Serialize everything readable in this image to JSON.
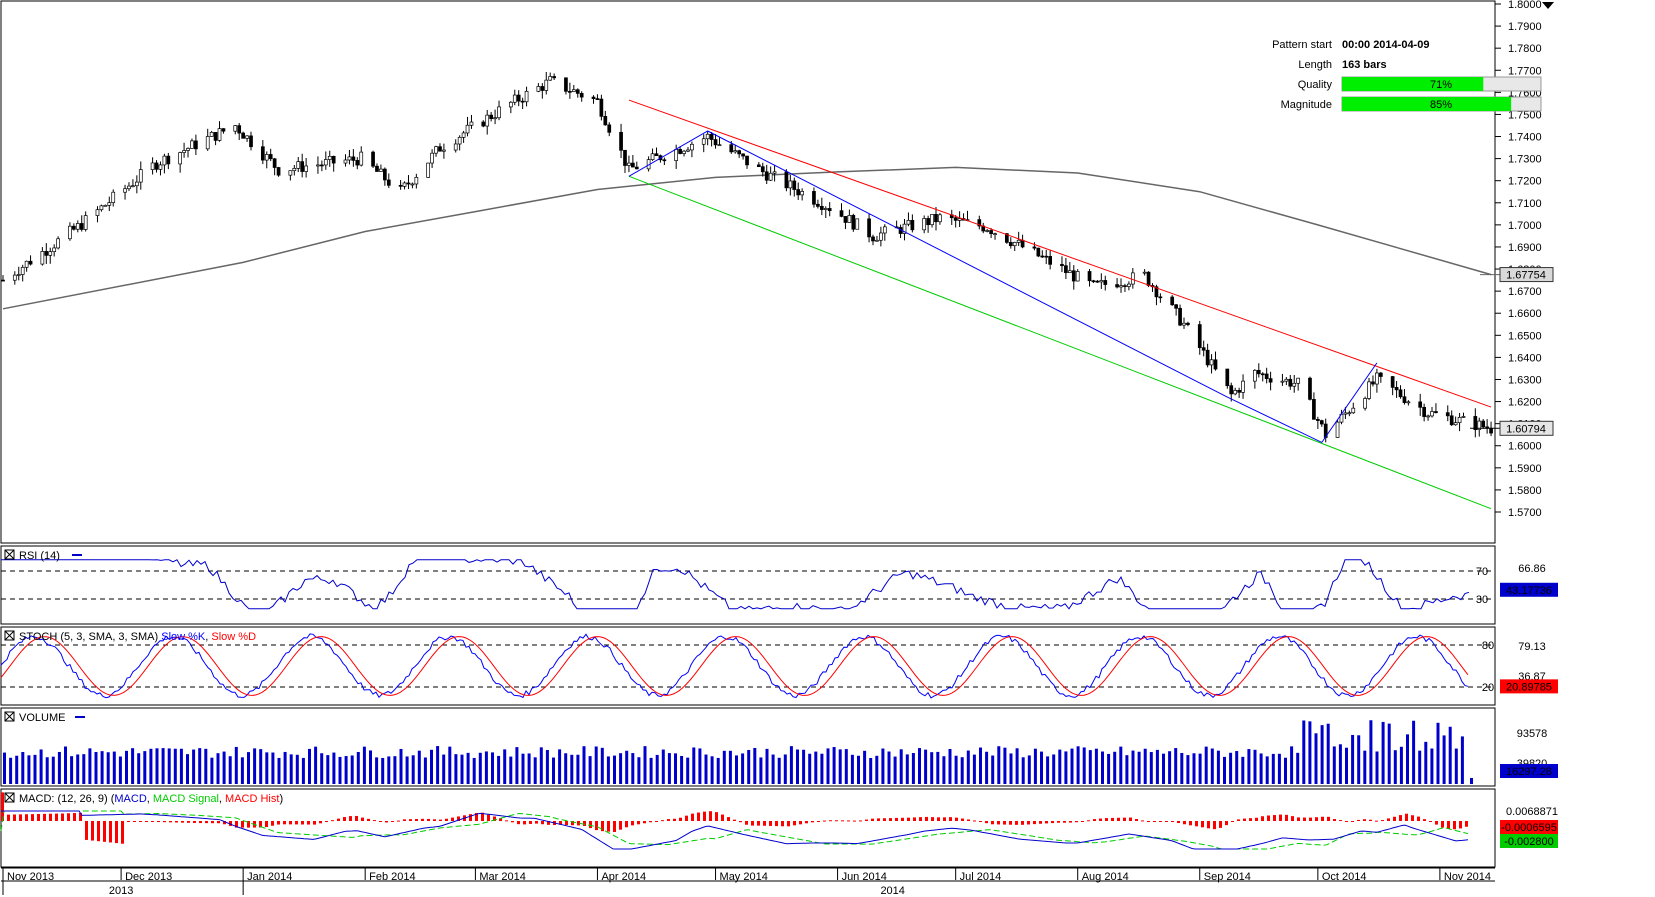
{
  "pattern_info": {
    "start_label": "Pattern start",
    "start_value": "00:00 2014-04-09",
    "length_label": "Length",
    "length_value": "163 bars",
    "quality_label": "Quality",
    "quality_value": "71%",
    "quality_fraction": 0.71,
    "magnitude_label": "Magnitude",
    "magnitude_value": "85%",
    "magnitude_fraction": 0.85
  },
  "chart_data": [
    {
      "type": "candlestick",
      "title": "",
      "ylim": [
        1.57,
        1.8
      ],
      "y_ticks": [
        "1.5700",
        "1.5800",
        "1.5900",
        "1.6000",
        "1.6100",
        "1.6200",
        "1.6300",
        "1.6400",
        "1.6500",
        "1.6600",
        "1.6700",
        "1.6800",
        "1.6900",
        "1.7000",
        "1.7100",
        "1.7200",
        "1.7300",
        "1.7400",
        "1.7500",
        "1.7600",
        "1.7700",
        "1.7800",
        "1.7900",
        "1.8000"
      ],
      "x_month_labels": [
        "Nov 2013",
        "Dec 2013",
        "Jan 2014",
        "Feb 2014",
        "Mar 2014",
        "Apr 2014",
        "May 2014",
        "Jun 2014",
        "Jul 2014",
        "Aug 2014",
        "Sep 2014",
        "Oct 2014",
        "Nov 2014"
      ],
      "x_year_labels": [
        "2013",
        "2014"
      ],
      "ma_last_label": "1.67754",
      "ma_last_value": 1.6775,
      "last_price_label": "1.60794",
      "last_price_value": 1.6079,
      "pattern_lines": {
        "resistance": {
          "from": [
            "2014-04-09",
            1.7565
          ],
          "to": [
            "2014-11-14",
            1.6175
          ],
          "color": "#ff0000"
        },
        "support_parallel": {
          "from": [
            "2014-04-09",
            1.722
          ],
          "to": [
            "2014-11-14",
            1.5715
          ],
          "color": "#00cc00"
        },
        "zigzag": [
          [
            "2014-04-09",
            1.722
          ],
          [
            "2014-04-29",
            1.7425
          ],
          [
            "2014-09-08",
            1.622
          ],
          [
            "2014-10-02",
            1.6015
          ],
          [
            "2014-10-16",
            1.6375
          ]
        ]
      },
      "colors": {
        "up": "#ffffff",
        "down": "#000000",
        "ma": "#666666",
        "zigzag": "#0000ff"
      }
    },
    {
      "type": "line",
      "title": "RSI (14)",
      "ylim": [
        0,
        100
      ],
      "levels": [
        70,
        30
      ],
      "level_labels": [
        "70",
        "30"
      ],
      "extra_label": "66.86",
      "last_label": "43.17736",
      "last_value": 43.18,
      "series": [
        {
          "name": "RSI (14)",
          "color": "#0000cc"
        }
      ]
    },
    {
      "type": "line",
      "title": "STOCH (5, 3, SMA, 3, SMA)",
      "ylim": [
        0,
        100
      ],
      "levels": [
        80,
        20
      ],
      "level_labels": [
        "80",
        "20"
      ],
      "extra_labels": [
        "79.13",
        "36.87"
      ],
      "last_label": "20.89785",
      "last_value": 20.9,
      "series": [
        {
          "name": "Slow %K",
          "color": "#0000ff"
        },
        {
          "name": "Slow %D",
          "color": "#ff0000"
        }
      ],
      "legend_sep": ","
    },
    {
      "type": "bar",
      "title": "VOLUME",
      "y_labels": [
        "93578",
        "39820"
      ],
      "last_label": "16297.28",
      "last_value": 16297.28,
      "series": [
        {
          "name": "VOLUME",
          "color": "#0000cc"
        }
      ]
    },
    {
      "type": "line",
      "title": "MACD: (12, 26, 9)",
      "y_labels": [
        "0.0068871"
      ],
      "last_label": "-0.0006595",
      "last_value": -0.0006595,
      "signal_label": "-0.002800",
      "series": [
        {
          "name": "MACD",
          "color": "#0000cc"
        },
        {
          "name": "MACD Signal",
          "color": "#00cc00"
        },
        {
          "name": "MACD Hist",
          "color": "#ff0000"
        }
      ]
    }
  ]
}
